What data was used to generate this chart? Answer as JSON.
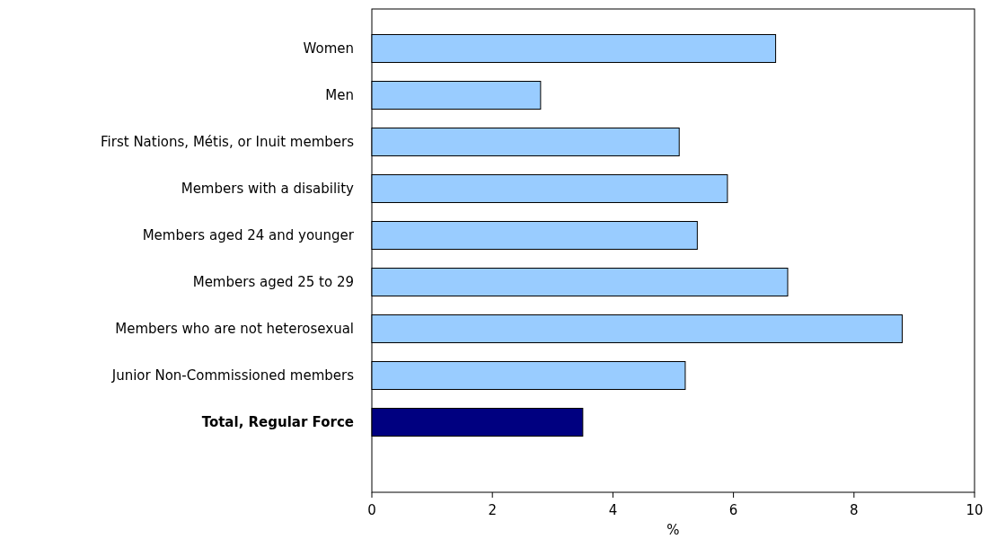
{
  "chart_data": {
    "type": "bar",
    "orientation": "horizontal",
    "xlabel": "%",
    "categories": [
      "Women",
      "Men",
      "First Nations, Métis, or Inuit members",
      "Members with a disability",
      "Members aged 24 and younger",
      "Members aged 25 to 29",
      "Members who are not heterosexual",
      "Junior Non-Commissioned members",
      "Total, Regular Force"
    ],
    "values": [
      6.7,
      2.8,
      5.1,
      5.9,
      5.4,
      6.9,
      8.8,
      5.2,
      3.5
    ],
    "colors": [
      "#99ccff",
      "#99ccff",
      "#99ccff",
      "#99ccff",
      "#99ccff",
      "#99ccff",
      "#99ccff",
      "#99ccff",
      "#000080"
    ],
    "xlim": [
      0,
      10
    ],
    "xticks": [
      0,
      2,
      4,
      6,
      8,
      10
    ]
  }
}
